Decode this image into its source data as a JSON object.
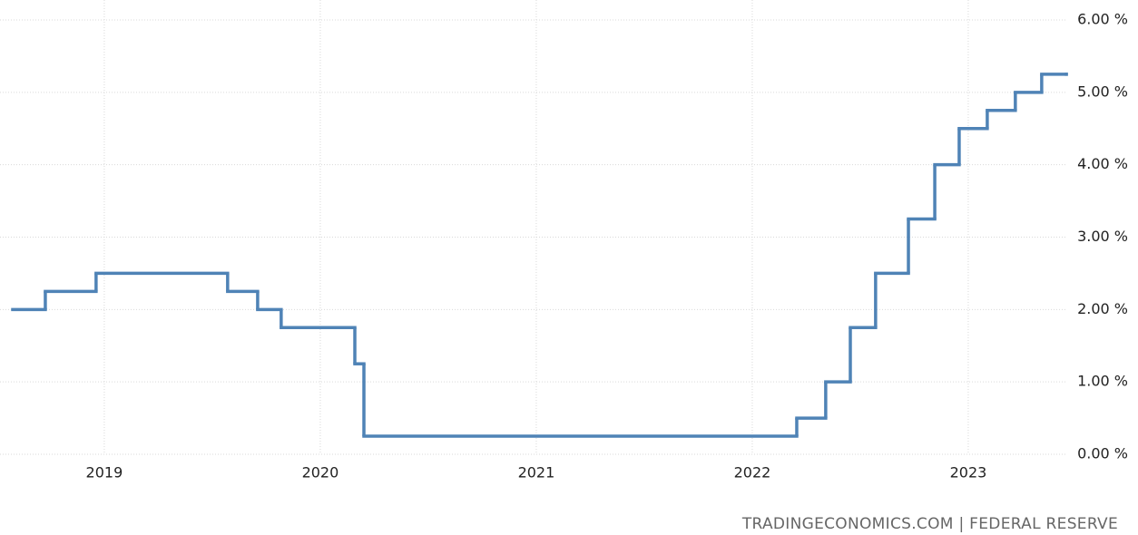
{
  "chart_data": {
    "type": "step",
    "source": "TRADINGECONOMICS.COM | FEDERAL RESERVE",
    "x": [
      2018.576,
      2018.727,
      2018.962,
      2019.571,
      2019.71,
      2019.819,
      2020.16,
      2020.202,
      2022.206,
      2022.34,
      2022.454,
      2022.571,
      2022.723,
      2022.845,
      2022.958,
      2023.088,
      2023.218,
      2023.34,
      2023.454
    ],
    "series": [
      {
        "color": "#4f83b6",
        "values": [
          2.0,
          2.25,
          2.5,
          2.25,
          2.0,
          1.75,
          1.25,
          0.25,
          0.5,
          1.0,
          1.75,
          2.5,
          3.25,
          4.0,
          4.5,
          4.75,
          5.0,
          5.25,
          5.25
        ]
      }
    ],
    "xlim": [
      2018.576,
      2023.559
    ],
    "xticks": [
      2019,
      2020,
      2021,
      2022,
      2023
    ],
    "ylim": [
      0,
      6
    ],
    "yticks": [
      {
        "value": 0,
        "label": "0.00 %"
      },
      {
        "value": 1,
        "label": "1.00 %"
      },
      {
        "value": 2,
        "label": "2.00 %"
      },
      {
        "value": 3,
        "label": "3.00 %"
      },
      {
        "value": 4,
        "label": "4.00 %"
      },
      {
        "value": 5,
        "label": "5.00 %"
      },
      {
        "value": 6,
        "label": "6.00 %"
      }
    ],
    "grid": true
  }
}
